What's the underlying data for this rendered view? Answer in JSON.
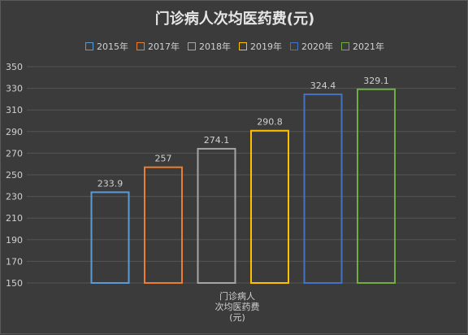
{
  "chart_data": {
    "type": "bar",
    "title": "门诊病人次均医药费(元)",
    "categories": [
      "门诊病人次均医药费(元)"
    ],
    "category_label_lines": [
      "门诊病人",
      "次均医药费",
      "(元)"
    ],
    "series": [
      {
        "name": "2015年",
        "values": [
          233.9
        ],
        "color": "#5b9bd5"
      },
      {
        "name": "2017年",
        "values": [
          257
        ],
        "color": "#ed7d31"
      },
      {
        "name": "2018年",
        "values": [
          274.1
        ],
        "color": "#a5a5a5"
      },
      {
        "name": "2019年",
        "values": [
          290.8
        ],
        "color": "#ffc000"
      },
      {
        "name": "2020年",
        "values": [
          324.4
        ],
        "color": "#4472c4"
      },
      {
        "name": "2021年",
        "values": [
          329.1
        ],
        "color": "#70ad47"
      }
    ],
    "data_labels": [
      "233.9",
      "257",
      "274.1",
      "290.8",
      "324.4",
      "329.1"
    ],
    "ylim": [
      150,
      350
    ],
    "yticks": [
      150,
      170,
      190,
      210,
      230,
      250,
      270,
      290,
      310,
      330,
      350
    ],
    "grid": true,
    "legend_position": "top"
  }
}
